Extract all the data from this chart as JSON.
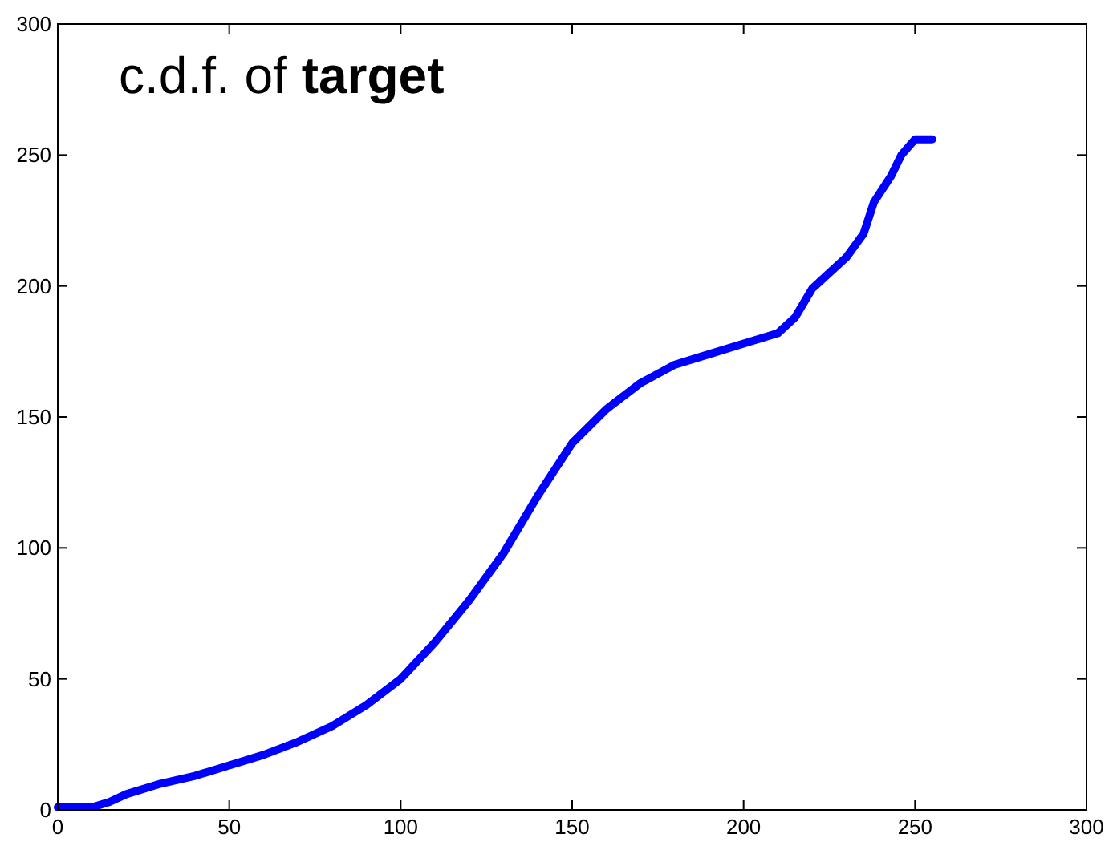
{
  "chart_data": {
    "type": "line",
    "title": "c.d.f. of target",
    "xlim": [
      0,
      300
    ],
    "ylim": [
      0,
      300
    ],
    "xticks": [
      0,
      50,
      100,
      150,
      200,
      250,
      300
    ],
    "yticks": [
      0,
      50,
      100,
      150,
      200,
      250,
      300
    ],
    "grid": false,
    "series": [
      {
        "color": "#0000ff",
        "x": [
          0,
          10,
          15,
          20,
          30,
          40,
          50,
          60,
          70,
          80,
          90,
          100,
          110,
          120,
          130,
          140,
          150,
          160,
          170,
          180,
          190,
          200,
          210,
          215,
          220,
          230,
          235,
          238,
          243,
          246,
          250,
          255
        ],
        "values": [
          1,
          1,
          3,
          6,
          10,
          13,
          17,
          21,
          26,
          32,
          40,
          50,
          64,
          80,
          98,
          120,
          140,
          153,
          163,
          170,
          174,
          178,
          182,
          188,
          199,
          211,
          220,
          232,
          242,
          250,
          256,
          256
        ]
      }
    ]
  }
}
